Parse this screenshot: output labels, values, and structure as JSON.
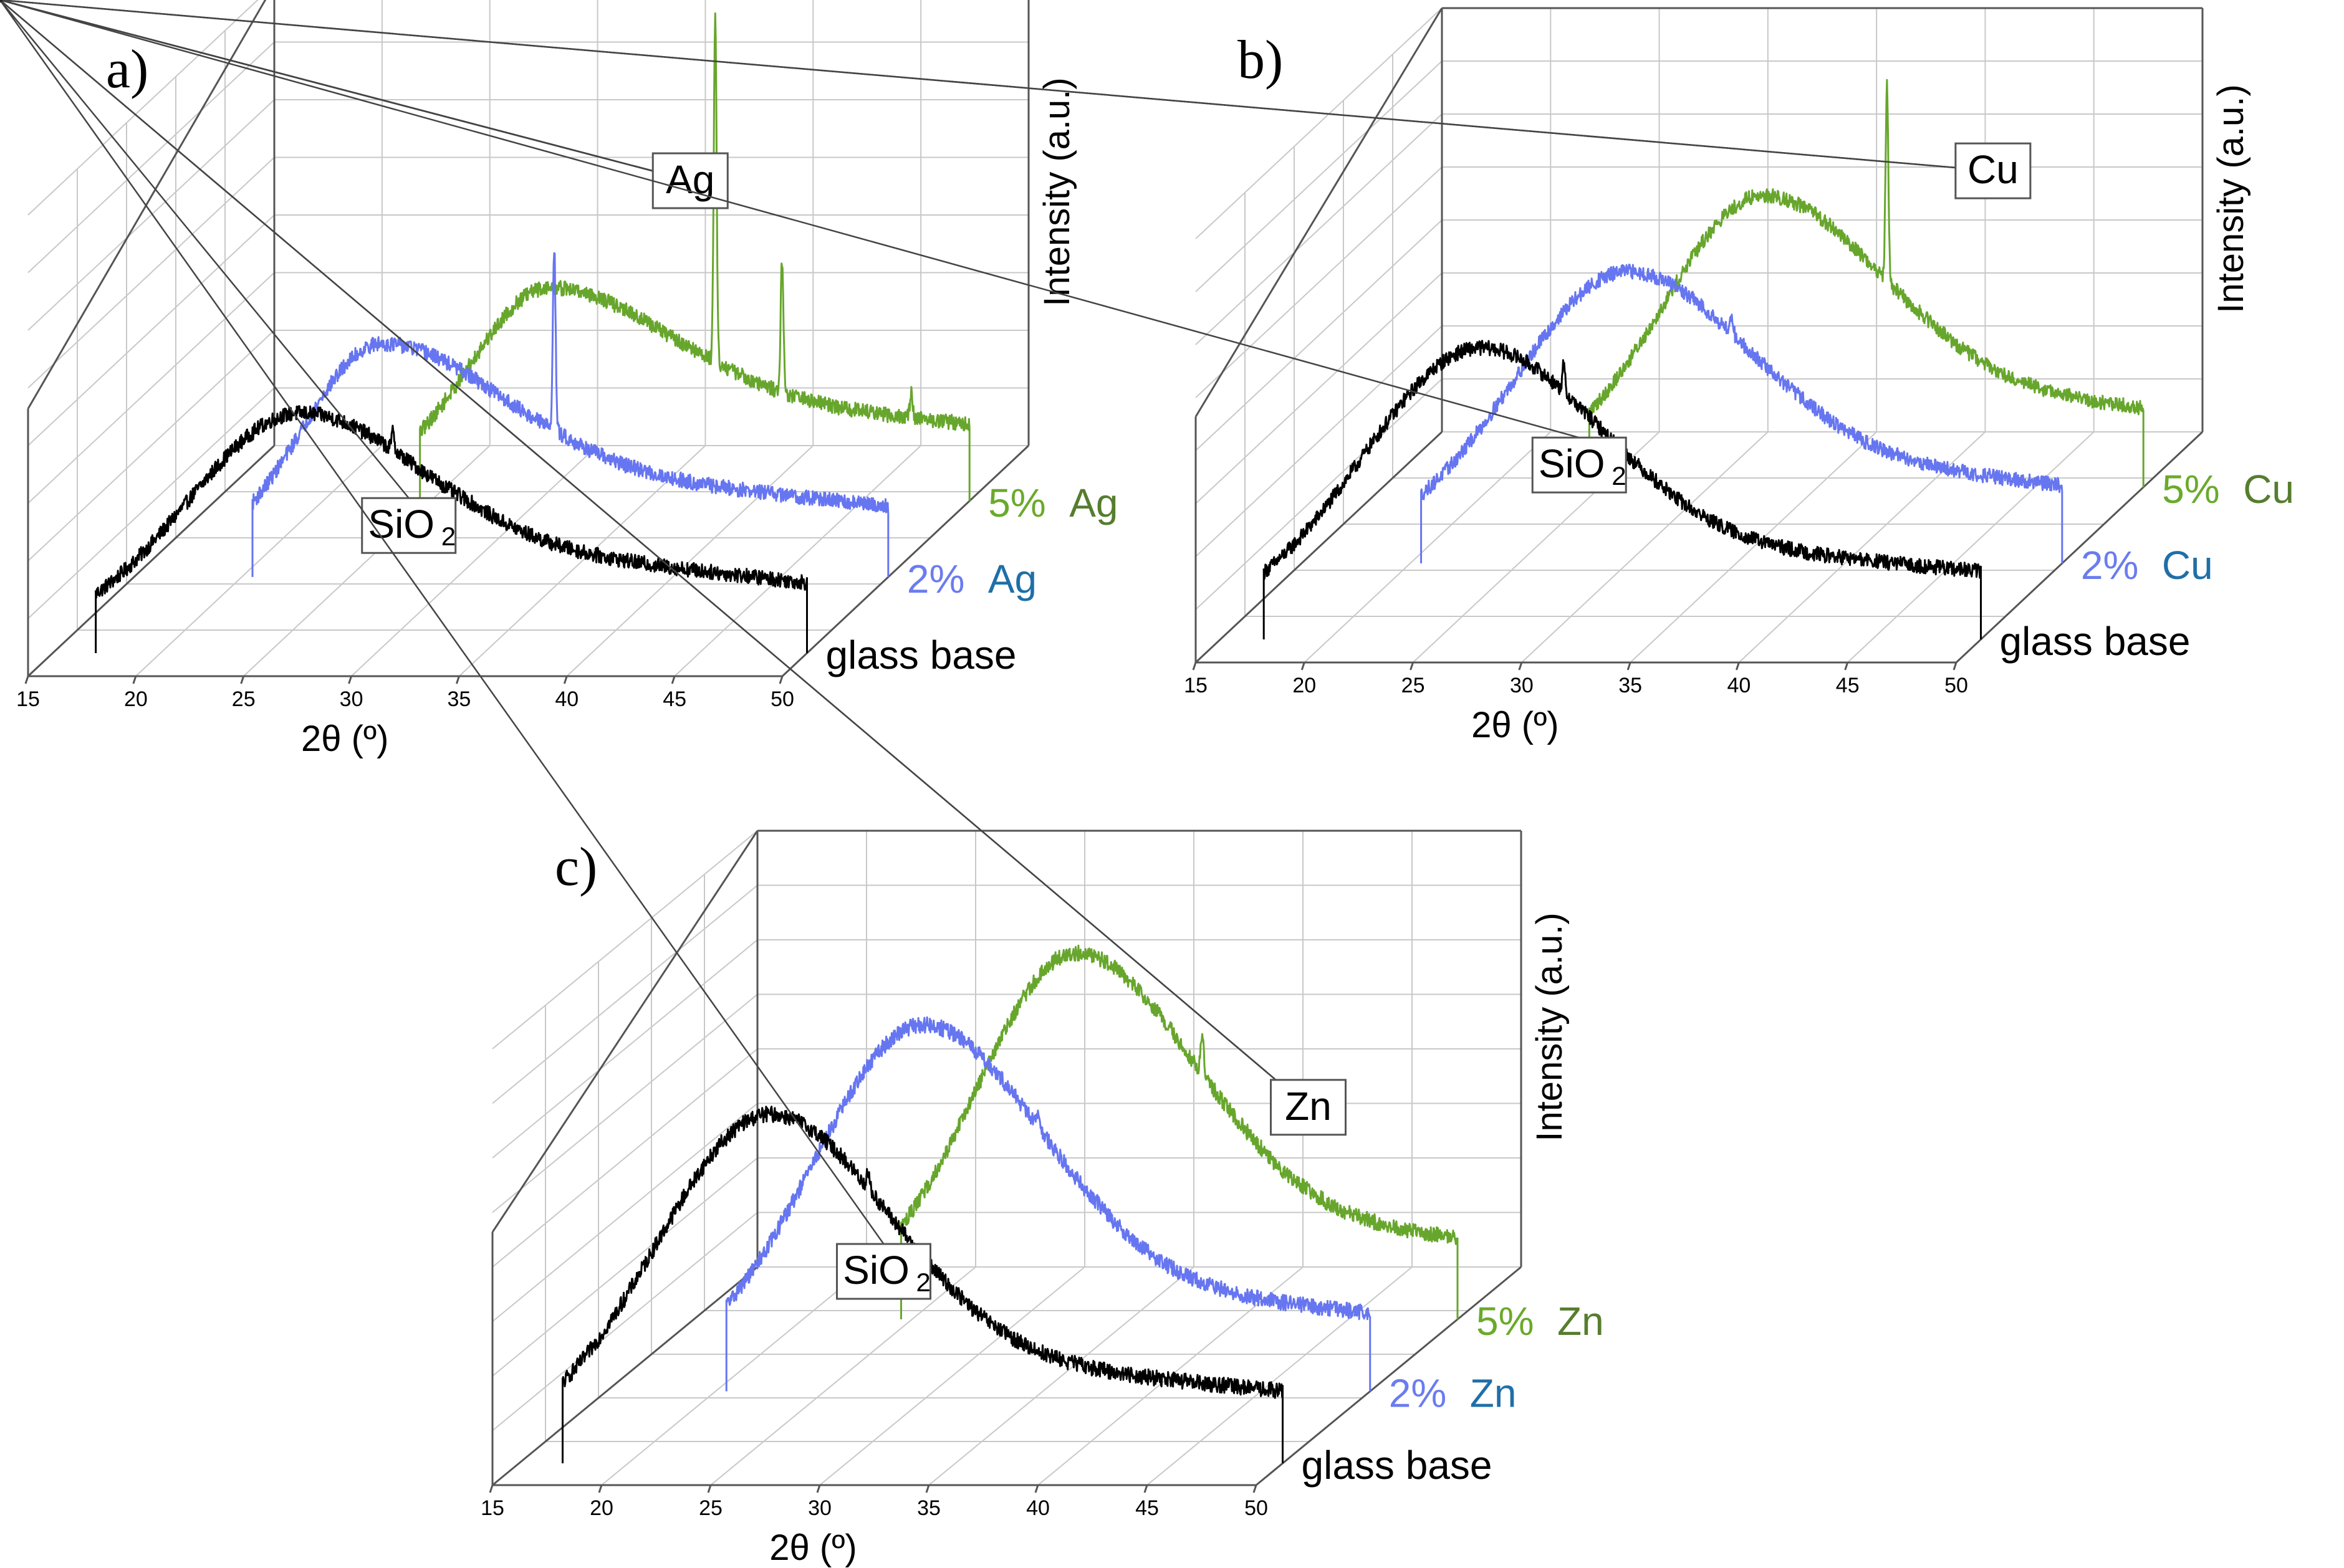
{
  "chart_data": [
    {
      "type": "line",
      "panel_label": "a)",
      "title": "",
      "xlabel": "2θ (º)",
      "ylabel": "Intensity (a.u.)",
      "xlim": [
        15,
        50
      ],
      "x_ticks": [
        "15",
        "20",
        "25",
        "30",
        "35",
        "40",
        "45",
        "50"
      ],
      "style": "3d-waterfall",
      "series": [
        {
          "name": "glass base",
          "label_pct": "",
          "label_elem": "",
          "label_pct_color": "#000000",
          "label_elem_color": "#000000",
          "color": "#000000",
          "x_start": 17,
          "x_end": 50,
          "peak_2theta": 26.5,
          "peak_intensity": 0.72,
          "end_intensity": 0.32,
          "sharp_peaks": [
            {
              "x": 30.8,
              "h": 0.06
            }
          ]
        },
        {
          "name": "2% Ag",
          "label_pct": "2%",
          "label_elem": "Ag",
          "label_pct_color": "#6a7cf0",
          "label_elem_color": "#1f6fa8",
          "color": "#6675f0",
          "x_start": 20.5,
          "x_end": 50,
          "peak_2theta": 26.5,
          "peak_intensity": 0.7,
          "end_intensity": 0.32,
          "sharp_peaks": [
            {
              "x": 34.5,
              "h": 0.55
            }
          ]
        },
        {
          "name": "5% Ag",
          "label_pct": "5%",
          "label_elem": "Ag",
          "label_pct_color": "#6aaa2a",
          "label_elem_color": "#567d2e",
          "color": "#67a62c",
          "x_start": 24.5,
          "x_end": 50,
          "peak_2theta": 30.5,
          "peak_intensity": 0.64,
          "end_intensity": 0.3,
          "sharp_peaks": [
            {
              "x": 38.2,
              "h": 1.05
            },
            {
              "x": 41.3,
              "h": 0.4
            },
            {
              "x": 47.3,
              "h": 0.08
            }
          ]
        }
      ],
      "annotations": [
        {
          "text": "SiO",
          "sub": "2",
          "targets": [
            {
              "series": 0,
              "x": 30.8
            }
          ]
        },
        {
          "text": "Ag",
          "sub": "",
          "targets": [
            {
              "series": 2,
              "x": 38.2
            },
            {
              "series": 2,
              "x": 41.3
            },
            {
              "series": 2,
              "x": 47.3
            },
            {
              "series": 1,
              "x": 34.5
            }
          ]
        }
      ]
    },
    {
      "type": "line",
      "panel_label": "b)",
      "title": "",
      "xlabel": "2θ (º)",
      "ylabel": "Intensity (a.u.)",
      "xlim": [
        15,
        50
      ],
      "x_ticks": [
        "15",
        "20",
        "25",
        "30",
        "35",
        "40",
        "45",
        "50"
      ],
      "style": "3d-waterfall",
      "series": [
        {
          "name": "glass base",
          "label_pct": "",
          "label_elem": "",
          "label_pct_color": "#000000",
          "label_elem_color": "#000000",
          "color": "#000000",
          "x_start": 17,
          "x_end": 50,
          "peak_2theta": 27,
          "peak_intensity": 0.9,
          "end_intensity": 0.3,
          "sharp_peaks": [
            {
              "x": 30.8,
              "h": 0.08
            }
          ]
        },
        {
          "name": "2% Cu",
          "label_pct": "2%",
          "label_elem": "Cu",
          "label_pct_color": "#6a7cf0",
          "label_elem_color": "#1f6fa8",
          "color": "#6675f0",
          "x_start": 20.5,
          "x_end": 50,
          "peak_2theta": 30,
          "peak_intensity": 0.9,
          "end_intensity": 0.33,
          "sharp_peaks": [
            {
              "x": 34.8,
              "h": 0.06
            }
          ]
        },
        {
          "name": "5% Cu",
          "label_pct": "5%",
          "label_elem": "Cu",
          "label_pct_color": "#6aaa2a",
          "label_elem_color": "#567d2e",
          "color": "#67a62c",
          "x_start": 24.5,
          "x_end": 50,
          "peak_2theta": 32.5,
          "peak_intensity": 0.9,
          "end_intensity": 0.3,
          "sharp_peaks": [
            {
              "x": 38.2,
              "h": 0.6
            }
          ]
        }
      ],
      "annotations": [
        {
          "text": "SiO",
          "sub": "2",
          "targets": [
            {
              "series": 0,
              "x": 30.8
            }
          ]
        },
        {
          "text": "Cu",
          "sub": "",
          "targets": [
            {
              "series": 2,
              "x": 38.2
            },
            {
              "series": 1,
              "x": 34.8
            }
          ]
        }
      ]
    },
    {
      "type": "line",
      "panel_label": "c)",
      "title": "",
      "xlabel": "2θ (º)",
      "ylabel": "Intensity (a.u.)",
      "xlim": [
        15,
        50
      ],
      "x_ticks": [
        "15",
        "20",
        "25",
        "30",
        "35",
        "40",
        "45",
        "50"
      ],
      "style": "3d-waterfall",
      "series": [
        {
          "name": "glass base",
          "label_pct": "",
          "label_elem": "",
          "label_pct_color": "#000000",
          "label_elem_color": "#000000",
          "color": "#000000",
          "x_start": 17,
          "x_end": 50,
          "peak_2theta": 26.5,
          "peak_intensity": 1.0,
          "end_intensity": 0.3,
          "sharp_peaks": [
            {
              "x": 31,
              "h": 0.05
            }
          ]
        },
        {
          "name": "2% Zn",
          "label_pct": "2%",
          "label_elem": "Zn",
          "label_pct_color": "#6a7cf0",
          "label_elem_color": "#1f6fa8",
          "color": "#6675f0",
          "x_start": 20.5,
          "x_end": 50,
          "peak_2theta": 29.5,
          "peak_intensity": 1.05,
          "end_intensity": 0.3,
          "sharp_peaks": [
            {
              "x": 34.8,
              "h": 0.05
            }
          ]
        },
        {
          "name": "5% Zn",
          "label_pct": "5%",
          "label_elem": "Zn",
          "label_pct_color": "#6aaa2a",
          "label_elem_color": "#567d2e",
          "color": "#67a62c",
          "x_start": 24.5,
          "x_end": 50,
          "peak_2theta": 32.5,
          "peak_intensity": 1.05,
          "end_intensity": 0.28,
          "sharp_peaks": [
            {
              "x": 38.3,
              "h": 0.12
            }
          ]
        }
      ],
      "annotations": [
        {
          "text": "SiO",
          "sub": "2",
          "targets": [
            {
              "series": 0,
              "x": 31
            }
          ]
        },
        {
          "text": "Zn",
          "sub": "",
          "targets": [
            {
              "series": 2,
              "x": 38.3
            },
            {
              "series": 1,
              "x": 34.8
            }
          ]
        }
      ]
    }
  ]
}
